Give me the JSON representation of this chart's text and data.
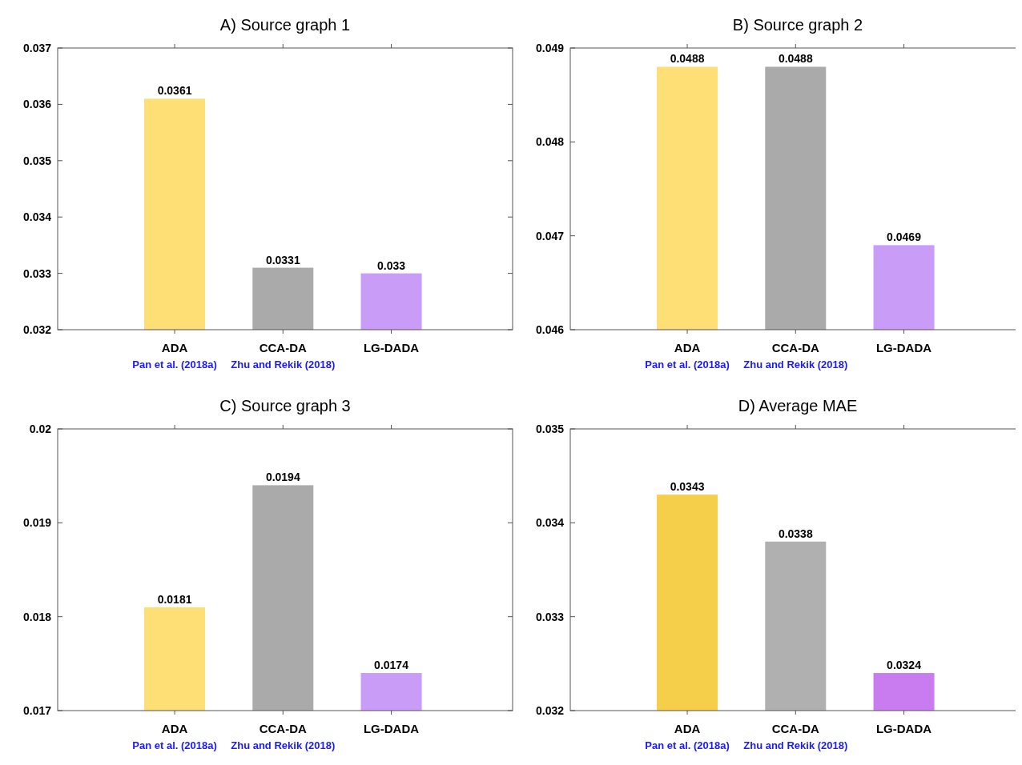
{
  "chart_data": [
    {
      "type": "bar",
      "title": "A) Source graph 1",
      "categories": [
        "ADA",
        "CCA-DA",
        "LG-DADA"
      ],
      "values": [
        0.0361,
        0.0331,
        0.033
      ],
      "colors": [
        "#fddf75",
        "#aaaaaa",
        "#c99cf7"
      ],
      "ylim": [
        0.032,
        0.037
      ],
      "yticks": [
        0.032,
        0.033,
        0.034,
        0.035,
        0.036,
        0.037
      ],
      "data_labels": true,
      "annotations": [
        "Pan et al. (2018a)",
        "Zhu and Rekik (2018)"
      ]
    },
    {
      "type": "bar",
      "title": "B) Source graph 2",
      "categories": [
        "ADA",
        "CCA-DA",
        "LG-DADA"
      ],
      "values": [
        0.0488,
        0.0488,
        0.0469
      ],
      "colors": [
        "#fddf75",
        "#aaaaaa",
        "#c99cf7"
      ],
      "ylim": [
        0.046,
        0.049
      ],
      "yticks": [
        0.046,
        0.047,
        0.048,
        0.049
      ],
      "data_labels": true,
      "annotations": [
        "Pan et al. (2018a)",
        "Zhu and Rekik (2018)"
      ]
    },
    {
      "type": "bar",
      "title": "C) Source graph 3",
      "categories": [
        "ADA",
        "CCA-DA",
        "LG-DADA"
      ],
      "values": [
        0.0181,
        0.0194,
        0.0174
      ],
      "colors": [
        "#fddf75",
        "#aaaaaa",
        "#c99cf7"
      ],
      "ylim": [
        0.017,
        0.02
      ],
      "yticks": [
        0.017,
        0.018,
        0.019,
        0.02
      ],
      "data_labels": true,
      "annotations": [
        "Pan et al. (2018a)",
        "Zhu and Rekik (2018)"
      ]
    },
    {
      "type": "bar",
      "title": "D) Average MAE",
      "categories": [
        "ADA",
        "CCA-DA",
        "LG-DADA"
      ],
      "values": [
        0.0343,
        0.0338,
        0.0324
      ],
      "colors": [
        "#f5cf4a",
        "#b0b0b0",
        "#c97cf0"
      ],
      "ylim": [
        0.032,
        0.035
      ],
      "yticks": [
        0.032,
        0.033,
        0.034,
        0.035
      ],
      "data_labels": true,
      "annotations": [
        "Pan et al. (2018a)",
        "Zhu and Rekik (2018)"
      ]
    }
  ]
}
